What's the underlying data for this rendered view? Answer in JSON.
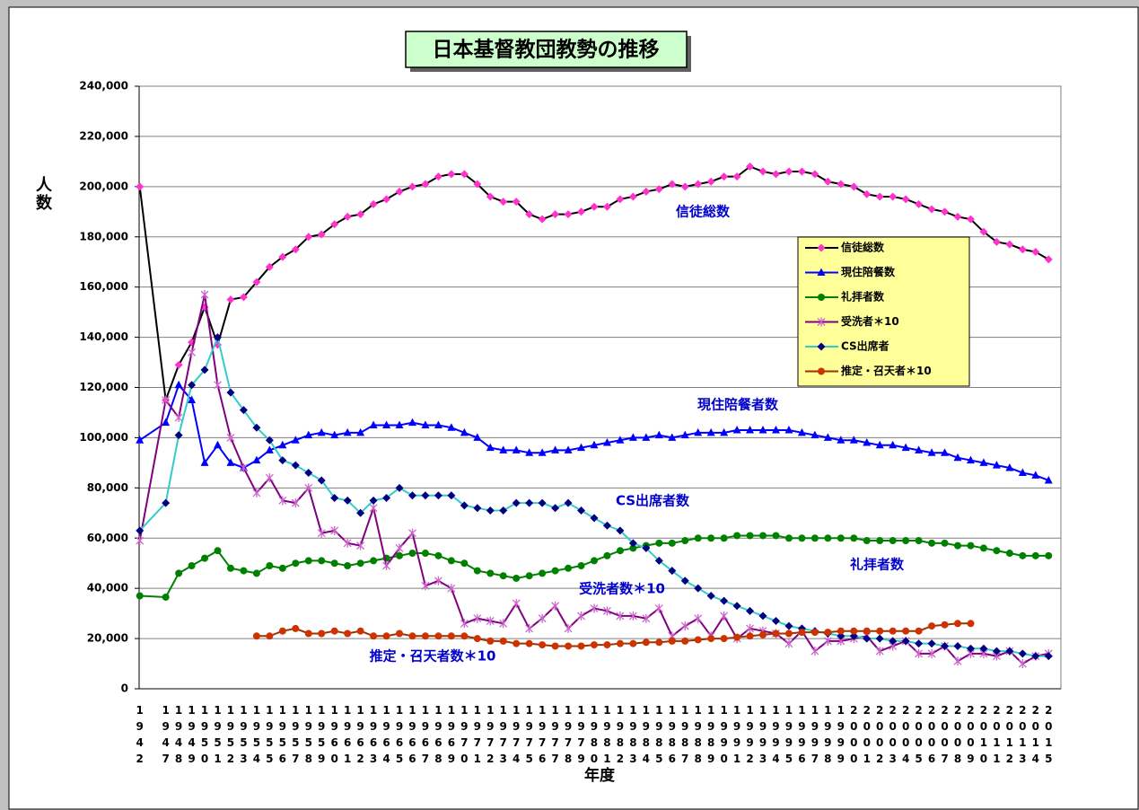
{
  "chart_data": {
    "type": "line",
    "title": "日本基督教団教勢の推移",
    "x_label": "年度",
    "y_label": "人数",
    "categories": [
      "1942",
      null,
      "1947",
      "1948",
      "1949",
      "1950",
      "1951",
      "1952",
      "1953",
      "1954",
      "1955",
      "1956",
      "1957",
      "1958",
      "1959",
      "1960",
      "1961",
      "1962",
      "1963",
      "1964",
      "1965",
      "1966",
      "1967",
      "1968",
      "1969",
      "1970",
      "1971",
      "1972",
      "1973",
      "1974",
      "1975",
      "1976",
      "1977",
      "1978",
      "1979",
      "1980",
      "1981",
      "1982",
      "1983",
      "1984",
      "1985",
      "1986",
      "1987",
      "1988",
      "1989",
      "1990",
      "1991",
      "1992",
      "1993",
      "1994",
      "1995",
      "1996",
      "1997",
      "1998",
      "1999",
      "2000",
      "2001",
      "2002",
      "2003",
      "2004",
      "2005",
      "2006",
      "2007",
      "2008",
      "2009",
      "2010",
      "2011",
      "2012",
      "2013",
      "2014",
      "2015"
    ],
    "ylim": [
      0,
      240000
    ],
    "yticks": [
      0,
      {
        "value": 20000,
        "label": "20,000"
      },
      {
        "value": 40000,
        "label": "40,000"
      },
      {
        "value": 60000,
        "label": "60,000"
      },
      {
        "value": 80000,
        "label": "80,000"
      },
      {
        "value": 100000,
        "label": "100,000"
      },
      {
        "value": 120000,
        "label": "120,000"
      },
      {
        "value": 140000,
        "label": "140,000"
      },
      {
        "value": 160000,
        "label": "160,000"
      },
      {
        "value": 180000,
        "label": "180,000"
      },
      {
        "value": 200000,
        "label": "200,000"
      },
      {
        "value": 220000,
        "label": "220,000"
      },
      {
        "value": 240000,
        "label": "240,000"
      }
    ],
    "grid": true,
    "connect_gaps": true,
    "legend": "right",
    "series": [
      {
        "name": "信徒総数",
        "color": "#000000",
        "marker": "diamond",
        "marker_color": "#ff33cc",
        "values": [
          200000,
          null,
          115000,
          129000,
          138000,
          152000,
          137000,
          155000,
          156000,
          162000,
          168000,
          172000,
          175000,
          180000,
          181000,
          185000,
          188000,
          189000,
          193000,
          195000,
          198000,
          200000,
          201000,
          204000,
          205000,
          205000,
          201000,
          196000,
          194000,
          194000,
          189000,
          187000,
          189000,
          189000,
          190000,
          192000,
          192000,
          195000,
          196000,
          198000,
          199000,
          201000,
          200000,
          201000,
          202000,
          204000,
          204000,
          208000,
          206000,
          205000,
          206000,
          206000,
          205000,
          202000,
          201000,
          200000,
          197000,
          196000,
          196000,
          195000,
          193000,
          191000,
          190000,
          188000,
          187000,
          182000,
          178000,
          177000,
          175000,
          174000,
          171000
        ]
      },
      {
        "name": "現住陪餐数",
        "color": "#0000ff",
        "marker": "triangle",
        "marker_color": "#0000ff",
        "values": [
          99000,
          null,
          106000,
          121000,
          115000,
          90000,
          97000,
          90000,
          88000,
          91000,
          95000,
          97000,
          99000,
          101000,
          102000,
          101000,
          102000,
          102000,
          105000,
          105000,
          105000,
          106000,
          105000,
          105000,
          104000,
          102000,
          100000,
          96000,
          95000,
          95000,
          94000,
          94000,
          95000,
          95000,
          96000,
          97000,
          98000,
          99000,
          100000,
          100000,
          101000,
          100000,
          101000,
          102000,
          102000,
          102000,
          103000,
          103000,
          103000,
          103000,
          103000,
          102000,
          101000,
          100000,
          99000,
          99000,
          98000,
          97000,
          97000,
          96000,
          95000,
          94000,
          94000,
          92000,
          91000,
          90000,
          89000,
          88000,
          86000,
          85000,
          83000
        ]
      },
      {
        "name": "礼拝者数",
        "color": "#008000",
        "marker": "circle",
        "marker_color": "#008000",
        "values": [
          37000,
          null,
          36500,
          46000,
          49000,
          52000,
          55000,
          48000,
          47000,
          46000,
          49000,
          48000,
          50000,
          51000,
          51000,
          50000,
          49000,
          50000,
          51000,
          52000,
          53000,
          54000,
          54000,
          53000,
          51000,
          50000,
          47000,
          46000,
          45000,
          44000,
          45000,
          46000,
          47000,
          48000,
          49000,
          51000,
          53000,
          55000,
          56000,
          57000,
          58000,
          58000,
          59000,
          60000,
          60000,
          60000,
          61000,
          61000,
          61000,
          61000,
          60000,
          60000,
          60000,
          60000,
          60000,
          60000,
          59000,
          59000,
          59000,
          59000,
          59000,
          58000,
          58000,
          57000,
          57000,
          56000,
          55000,
          54000,
          53000,
          53000,
          53000
        ]
      },
      {
        "name": "受洗者＊10",
        "color": "#800080",
        "marker": "asterisk",
        "marker_color": "#cc66cc",
        "values": [
          59000,
          null,
          115000,
          108000,
          134000,
          157000,
          121000,
          100000,
          88000,
          78000,
          84000,
          75000,
          74000,
          80000,
          62000,
          63000,
          58000,
          57000,
          72000,
          49000,
          56000,
          62000,
          41000,
          43000,
          40000,
          26000,
          28000,
          27000,
          26000,
          34000,
          24000,
          28000,
          33000,
          24000,
          29000,
          32000,
          31000,
          29000,
          29000,
          28000,
          32000,
          21000,
          25000,
          28000,
          21000,
          29000,
          20000,
          24000,
          23000,
          22000,
          18000,
          23000,
          15000,
          19000,
          19000,
          20000,
          21000,
          15000,
          17000,
          19000,
          14000,
          14000,
          17000,
          11000,
          14000,
          14000,
          13000,
          15000,
          10000,
          13000,
          14000
        ]
      },
      {
        "name": "CS出席者",
        "color": "#33cccc",
        "marker": "diamond",
        "marker_color": "#000080",
        "values": [
          63000,
          null,
          74000,
          101000,
          121000,
          127000,
          140000,
          118000,
          111000,
          104000,
          99000,
          91000,
          89000,
          86000,
          83000,
          76000,
          75000,
          70000,
          75000,
          76000,
          80000,
          77000,
          77000,
          77000,
          77000,
          73000,
          72000,
          71000,
          71000,
          74000,
          74000,
          74000,
          72000,
          74000,
          71000,
          68000,
          65000,
          63000,
          58000,
          56000,
          51000,
          47000,
          43000,
          40000,
          37000,
          35000,
          33000,
          31000,
          29000,
          27000,
          25000,
          24000,
          23000,
          22000,
          21000,
          21000,
          20000,
          20000,
          19000,
          19000,
          18000,
          18000,
          17000,
          17000,
          16000,
          16000,
          15000,
          15000,
          14000,
          13000,
          13000
        ]
      },
      {
        "name": "推定・召天者＊10",
        "color": "#993300",
        "marker": "circle",
        "marker_color": "#cc3300",
        "values": [
          null,
          null,
          null,
          null,
          null,
          null,
          null,
          null,
          null,
          21000,
          21000,
          23000,
          24000,
          22000,
          22000,
          23000,
          22000,
          23000,
          21000,
          21000,
          22000,
          21000,
          21000,
          21000,
          21000,
          21000,
          20000,
          19000,
          19000,
          18000,
          18000,
          17500,
          17000,
          17000,
          17000,
          17500,
          17500,
          18000,
          18000,
          18500,
          18500,
          19000,
          19000,
          19500,
          20000,
          20000,
          20500,
          21000,
          21500,
          22000,
          22000,
          22500,
          22500,
          22500,
          23000,
          23000,
          23000,
          23000,
          23000,
          23000,
          23000,
          25000,
          25500,
          26000,
          26000,
          null,
          null,
          null,
          null,
          null,
          null
        ]
      }
    ],
    "annotations": [
      "信徒総数",
      "現住陪餐者数",
      "CS出席者数",
      "礼拝者数",
      "受洗者数＊10",
      "推定・召天者数＊10"
    ],
    "annotation_color": "#0000cc"
  }
}
